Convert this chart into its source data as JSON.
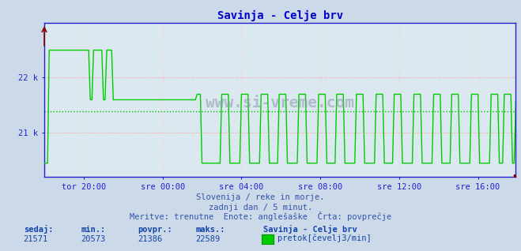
{
  "title": "Savinja - Celje brv",
  "title_color": "#0000cc",
  "bg_color": "#ccd9e8",
  "plot_bg_color": "#dce8f0",
  "grid_color_h": "#ff9999",
  "grid_color_v": "#ffcccc",
  "avg_line_color": "#00bb00",
  "line_color": "#00cc00",
  "axis_color": "#2222cc",
  "ytick_labels": [
    "21 k",
    "22 k"
  ],
  "ytick_values": [
    21000,
    22000
  ],
  "ymin": 20200,
  "ymax": 23000,
  "avg_value": 21386,
  "min_value": 20573,
  "max_value": 22589,
  "current_value": 21571,
  "xtick_labels": [
    "tor 20:00",
    "sre 00:00",
    "sre 04:00",
    "sre 08:00",
    "sre 12:00",
    "sre 16:00"
  ],
  "subtitle1": "Slovenija / reke in morje.",
  "subtitle2": "zadnji dan / 5 minut.",
  "subtitle3": "Meritve: trenutne  Enote: anglešaške  Črta: povprečje",
  "footer_labels": [
    "sedaj:",
    "min.:",
    "povpr.:",
    "maks.:"
  ],
  "footer_values": [
    "21571",
    "20573",
    "21386",
    "22589"
  ],
  "legend_title": "Savinja - Celje brv",
  "legend_label": "pretok[čevelj3/min]",
  "watermark": "www.si-vreme.com",
  "watermark_color": "#8899aa",
  "text_color": "#3355aa",
  "footer_label_color": "#1144aa",
  "footer_value_color": "#1144aa"
}
